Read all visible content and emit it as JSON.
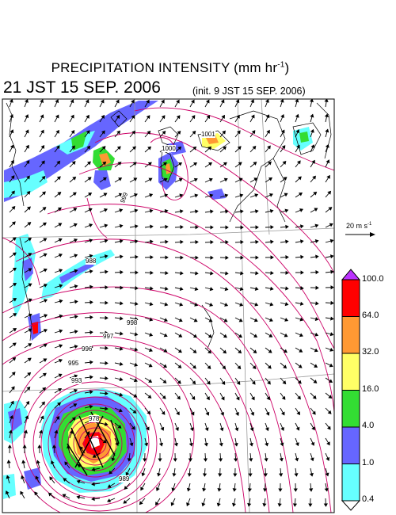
{
  "title": {
    "main": "PRECIPITATION INTENSITY (mm hr",
    "unit_exp": "-1",
    "unit_close": ")"
  },
  "valid_time": "21 JST 15 SEP. 2006",
  "init_time": "(init. 9 JST 15 SEP. 2006)",
  "wind_scale": {
    "label": "20 m s",
    "exp": "-1"
  },
  "legend": {
    "labels": [
      "100.0",
      "64.0",
      "32.0",
      "16.0",
      "4.0",
      "1.0",
      "0.4"
    ],
    "colors": [
      "#ff0000",
      "#ff9933",
      "#ffff66",
      "#33dd33",
      "#6666ff",
      "#66ffff"
    ],
    "over_color": "#bb33ff"
  },
  "contour_labels": [
    "1001",
    "1000",
    "999",
    "998",
    "997",
    "996",
    "995",
    "993",
    "989",
    "988",
    "978"
  ],
  "colors": {
    "isobar": "#cc0066",
    "grid": "#999999",
    "coast": "#000000"
  }
}
